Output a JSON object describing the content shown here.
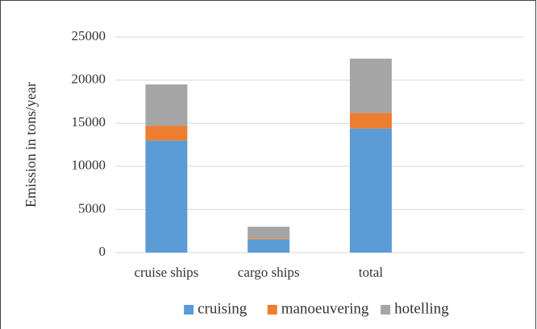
{
  "chart_data": {
    "type": "stacked_bar",
    "y_label": "Emission in tons/year",
    "categories": [
      "cruise ships",
      "cargo ships",
      "total",
      null
    ],
    "series": [
      {
        "name": "cruising",
        "color": "#5b9bd5",
        "values": [
          13000,
          1500,
          14400,
          null
        ]
      },
      {
        "name": "manoeuvering",
        "color": "#ed7d31",
        "values": [
          1700,
          100,
          1800,
          null
        ]
      },
      {
        "name": "hotelling",
        "color": "#a5a5a5",
        "values": [
          4800,
          1400,
          6300,
          null
        ]
      }
    ],
    "ylim": [
      0,
      25000
    ],
    "yticks": [
      0,
      5000,
      10000,
      15000,
      20000,
      25000
    ],
    "grid": true,
    "legend": "bottom"
  }
}
